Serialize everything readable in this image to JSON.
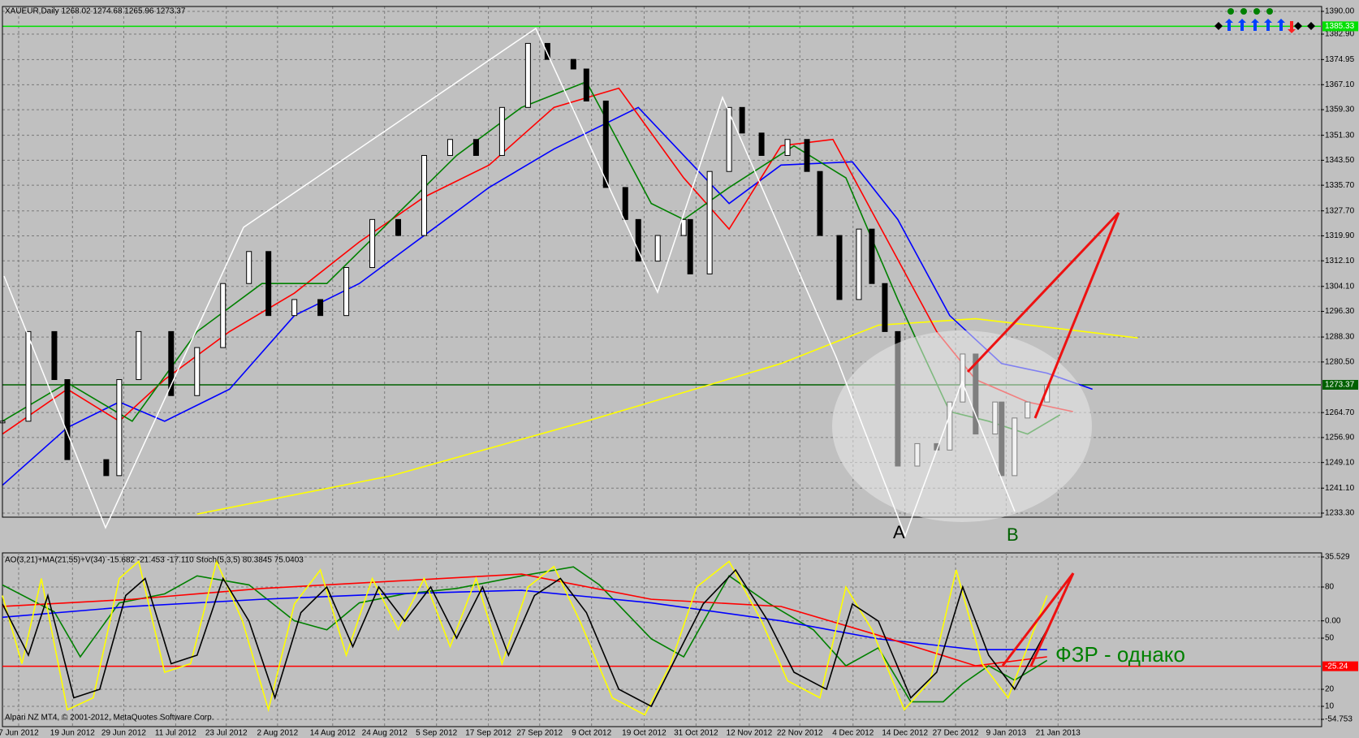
{
  "chart_data": [
    {
      "type": "candlestick",
      "title": "XAUEUR,Daily  1268.02 1274.68 1265.96 1273.37",
      "x": [
        0,
        4,
        8,
        10,
        16,
        18,
        21,
        26,
        30,
        34,
        38,
        41,
        45,
        49,
        53,
        57,
        61,
        65,
        69,
        73,
        77,
        81,
        84,
        88,
        90,
        93,
        96,
        98,
        101,
        105,
        106,
        109,
        112,
        114,
        117,
        121,
        124,
        126,
        129,
        132,
        134,
        136,
        138,
        141,
        144,
        146,
        148,
        150,
        153,
        154,
        156,
        158,
        161
      ],
      "close": [
        1262,
        1290,
        1275,
        1250,
        1245,
        1275,
        1290,
        1270,
        1285,
        1305,
        1315,
        1295,
        1300,
        1295,
        1310,
        1325,
        1320,
        1345,
        1350,
        1345,
        1360,
        1380,
        1375,
        1372,
        1362,
        1335,
        1325,
        1312,
        1320,
        1325,
        1308,
        1340,
        1360,
        1352,
        1345,
        1350,
        1340,
        1320,
        1300,
        1322,
        1305,
        1290,
        1248,
        1255,
        1253,
        1268,
        1283,
        1258,
        1268,
        1245,
        1263,
        1268,
        1273.37
      ],
      "up_color": "#ffffff",
      "down_color": "#000000",
      "xlim": [
        0,
        203.2
      ],
      "ylim": [
        1233.3,
        1390
      ],
      "yticks": [
        {
          "value": 1390,
          "label": "1390.00"
        },
        {
          "value": 1382.9,
          "label": "1382.90"
        },
        {
          "value": 1374.95,
          "label": "1374.95"
        },
        {
          "value": 1367.1,
          "label": "1367.10"
        },
        {
          "value": 1359.3,
          "label": "1359.30"
        },
        {
          "value": 1351.3,
          "label": "1351.30"
        },
        {
          "value": 1343.5,
          "label": "1343.50"
        },
        {
          "value": 1335.7,
          "label": "1335.70"
        },
        {
          "value": 1327.7,
          "label": "1327.70"
        },
        {
          "value": 1319.9,
          "label": "1319.90"
        },
        {
          "value": 1312.1,
          "label": "1312.10"
        },
        {
          "value": 1304.1,
          "label": "1304.10"
        },
        {
          "value": 1296.3,
          "label": "1296.30"
        },
        {
          "value": 1288.3,
          "label": "1288.30"
        },
        {
          "value": 1280.5,
          "label": "1280.50"
        },
        {
          "value": 1264.7,
          "label": "1264.70"
        },
        {
          "value": 1256.9,
          "label": "1256.90"
        },
        {
          "value": 1249.1,
          "label": "1249.10"
        },
        {
          "value": 1241.1,
          "label": "1241.10"
        },
        {
          "value": 1233.3,
          "label": "1233.30"
        }
      ],
      "xticks": [
        {
          "value": 2.5,
          "label": "7 Jun 2012"
        },
        {
          "value": 10.8,
          "label": "19 Jun 2012"
        },
        {
          "value": 18.7,
          "label": "29 Jun 2012"
        },
        {
          "value": 26.7,
          "label": "11 Jul 2012"
        },
        {
          "value": 34.5,
          "label": "23 Jul 2012"
        },
        {
          "value": 42.4,
          "label": "2 Aug 2012"
        },
        {
          "value": 50.9,
          "label": "14 Aug 2012"
        },
        {
          "value": 58.9,
          "label": "24 Aug 2012"
        },
        {
          "value": 66.9,
          "label": "5 Sep 2012"
        },
        {
          "value": 74.9,
          "label": "17 Sep 2012"
        },
        {
          "value": 82.8,
          "label": "27 Sep 2012"
        },
        {
          "value": 90.8,
          "label": "9 Oct 2012"
        },
        {
          "value": 98.9,
          "label": "19 Oct 2012"
        },
        {
          "value": 106.9,
          "label": "31 Oct 2012"
        },
        {
          "value": 115.1,
          "label": "12 Nov 2012"
        },
        {
          "value": 122.9,
          "label": "22 Nov 2012"
        },
        {
          "value": 131.1,
          "label": "4 Dec 2012"
        },
        {
          "value": 139.1,
          "label": "14 Dec 2012"
        },
        {
          "value": 146.9,
          "label": "27 Dec 2012"
        },
        {
          "value": 154.7,
          "label": "9 Jan 2013"
        },
        {
          "value": 162.7,
          "label": "21 Jan 2013"
        }
      ],
      "grid": true,
      "level": {
        "value": 1385.33,
        "label": "1385.33",
        "color": "#00e000"
      },
      "current": {
        "value": 1273.37,
        "label": "1273.37",
        "color": "#006000"
      },
      "annotations": [
        "A",
        "B"
      ],
      "series": [
        {
          "color": "#ffff00",
          "x": [
            30,
            60,
            90,
            120,
            135,
            150,
            175
          ],
          "values": [
            1233,
            1245,
            1262,
            1280,
            1292,
            1294,
            1288
          ]
        },
        {
          "color": "#0000ff",
          "x": [
            0,
            10,
            18,
            25,
            35,
            45,
            55,
            65,
            75,
            85,
            98,
            105,
            112,
            120,
            131,
            138,
            146,
            154,
            161,
            168
          ],
          "values": [
            1242,
            1260,
            1268,
            1262,
            1272,
            1295,
            1305,
            1320,
            1335,
            1347,
            1360,
            1345,
            1330,
            1342,
            1343,
            1325,
            1295,
            1280,
            1277,
            1272
          ]
        },
        {
          "color": "#ff0000",
          "x": [
            0,
            10,
            18,
            25,
            35,
            45,
            55,
            65,
            75,
            85,
            95,
            105,
            112,
            120,
            128,
            136,
            144,
            150,
            158,
            165
          ],
          "values": [
            1258,
            1272,
            1262,
            1275,
            1290,
            1302,
            1318,
            1332,
            1342,
            1360,
            1366,
            1338,
            1322,
            1348,
            1350,
            1320,
            1290,
            1275,
            1268,
            1265
          ]
        },
        {
          "color": "#008000",
          "x": [
            0,
            10,
            20,
            30,
            40,
            50,
            60,
            70,
            80,
            90,
            100,
            105,
            112,
            122,
            130,
            138,
            146,
            152,
            158,
            163
          ],
          "values": [
            1262,
            1274,
            1262,
            1290,
            1305,
            1305,
            1325,
            1345,
            1360,
            1368,
            1330,
            1325,
            1335,
            1348,
            1338,
            1300,
            1265,
            1262,
            1258,
            1264
          ]
        }
      ]
    },
    {
      "type": "line",
      "title": "AO(3,21)+MA(21,55)+V(34) -15.682 -21.453 -17.110  Stoch(5,3,5) 80.3845 75.0403",
      "xlim": [
        0,
        203.2
      ],
      "ylim": [
        -54.753,
        35.529
      ],
      "y2lim": [
        0,
        100
      ],
      "yticks": [
        35.529,
        {
          "value": 0,
          "label": "0.00"
        },
        -54.753
      ],
      "y2ticks": [
        80,
        50,
        20,
        10
      ],
      "level": {
        "value": -25.24,
        "label": "-25.24",
        "color": "#ff0000"
      },
      "annotation": "ФЗР - однако",
      "series": [
        {
          "color": "#008000",
          "x": [
            0,
            8,
            12,
            18,
            25,
            30,
            38,
            45,
            50,
            55,
            62,
            70,
            80,
            88,
            92,
            100,
            105,
            112,
            118,
            125,
            130,
            135,
            140,
            145,
            148,
            152,
            156,
            161
          ],
          "values": [
            20,
            5,
            -20,
            10,
            15,
            25,
            20,
            0,
            -5,
            10,
            15,
            18,
            25,
            30,
            20,
            -10,
            -20,
            25,
            10,
            -5,
            -25,
            -15,
            -45,
            -45,
            -35,
            -25,
            -33,
            -22
          ]
        },
        {
          "color": "#0000ff",
          "x": [
            0,
            20,
            40,
            60,
            80,
            100,
            120,
            135,
            150,
            161
          ],
          "values": [
            2,
            8,
            12,
            15,
            17,
            10,
            0,
            -10,
            -16,
            -16
          ]
        },
        {
          "color": "#ff0000",
          "x": [
            0,
            20,
            40,
            60,
            80,
            100,
            120,
            135,
            150,
            161
          ],
          "values": [
            8,
            12,
            18,
            22,
            26,
            12,
            8,
            -8,
            -25,
            -20
          ]
        },
        {
          "color": "#ffff00",
          "axis": "y2",
          "x": [
            0,
            3,
            6,
            10,
            14,
            18,
            21,
            25,
            29,
            33,
            37,
            41,
            45,
            49,
            53,
            57,
            61,
            65,
            69,
            73,
            77,
            81,
            85,
            89,
            94,
            99,
            103,
            107,
            112,
            117,
            121,
            126,
            130,
            134,
            139,
            143,
            147,
            151,
            155,
            161
          ],
          "values": [
            75,
            35,
            85,
            8,
            15,
            85,
            95,
            30,
            35,
            95,
            60,
            8,
            70,
            90,
            40,
            85,
            55,
            85,
            45,
            85,
            35,
            80,
            92,
            60,
            15,
            5,
            35,
            80,
            95,
            60,
            25,
            15,
            80,
            55,
            8,
            25,
            90,
            35,
            15,
            75
          ]
        },
        {
          "color": "#000000",
          "axis": "y2",
          "x": [
            0,
            4,
            7,
            11,
            15,
            19,
            22,
            26,
            30,
            34,
            38,
            42,
            46,
            50,
            54,
            58,
            62,
            66,
            70,
            74,
            78,
            82,
            86,
            90,
            95,
            100,
            104,
            108,
            113,
            118,
            122,
            127,
            131,
            135,
            140,
            144,
            148,
            152,
            156,
            161
          ],
          "values": [
            70,
            40,
            75,
            15,
            20,
            75,
            85,
            35,
            40,
            85,
            60,
            15,
            65,
            80,
            45,
            80,
            60,
            80,
            50,
            80,
            40,
            75,
            85,
            65,
            20,
            10,
            40,
            70,
            90,
            60,
            30,
            20,
            70,
            60,
            15,
            30,
            80,
            40,
            20,
            55
          ]
        }
      ]
    }
  ],
  "watermark": "Alpari NZ MT4, © 2001-2012, MetaQuotes Software Corp."
}
